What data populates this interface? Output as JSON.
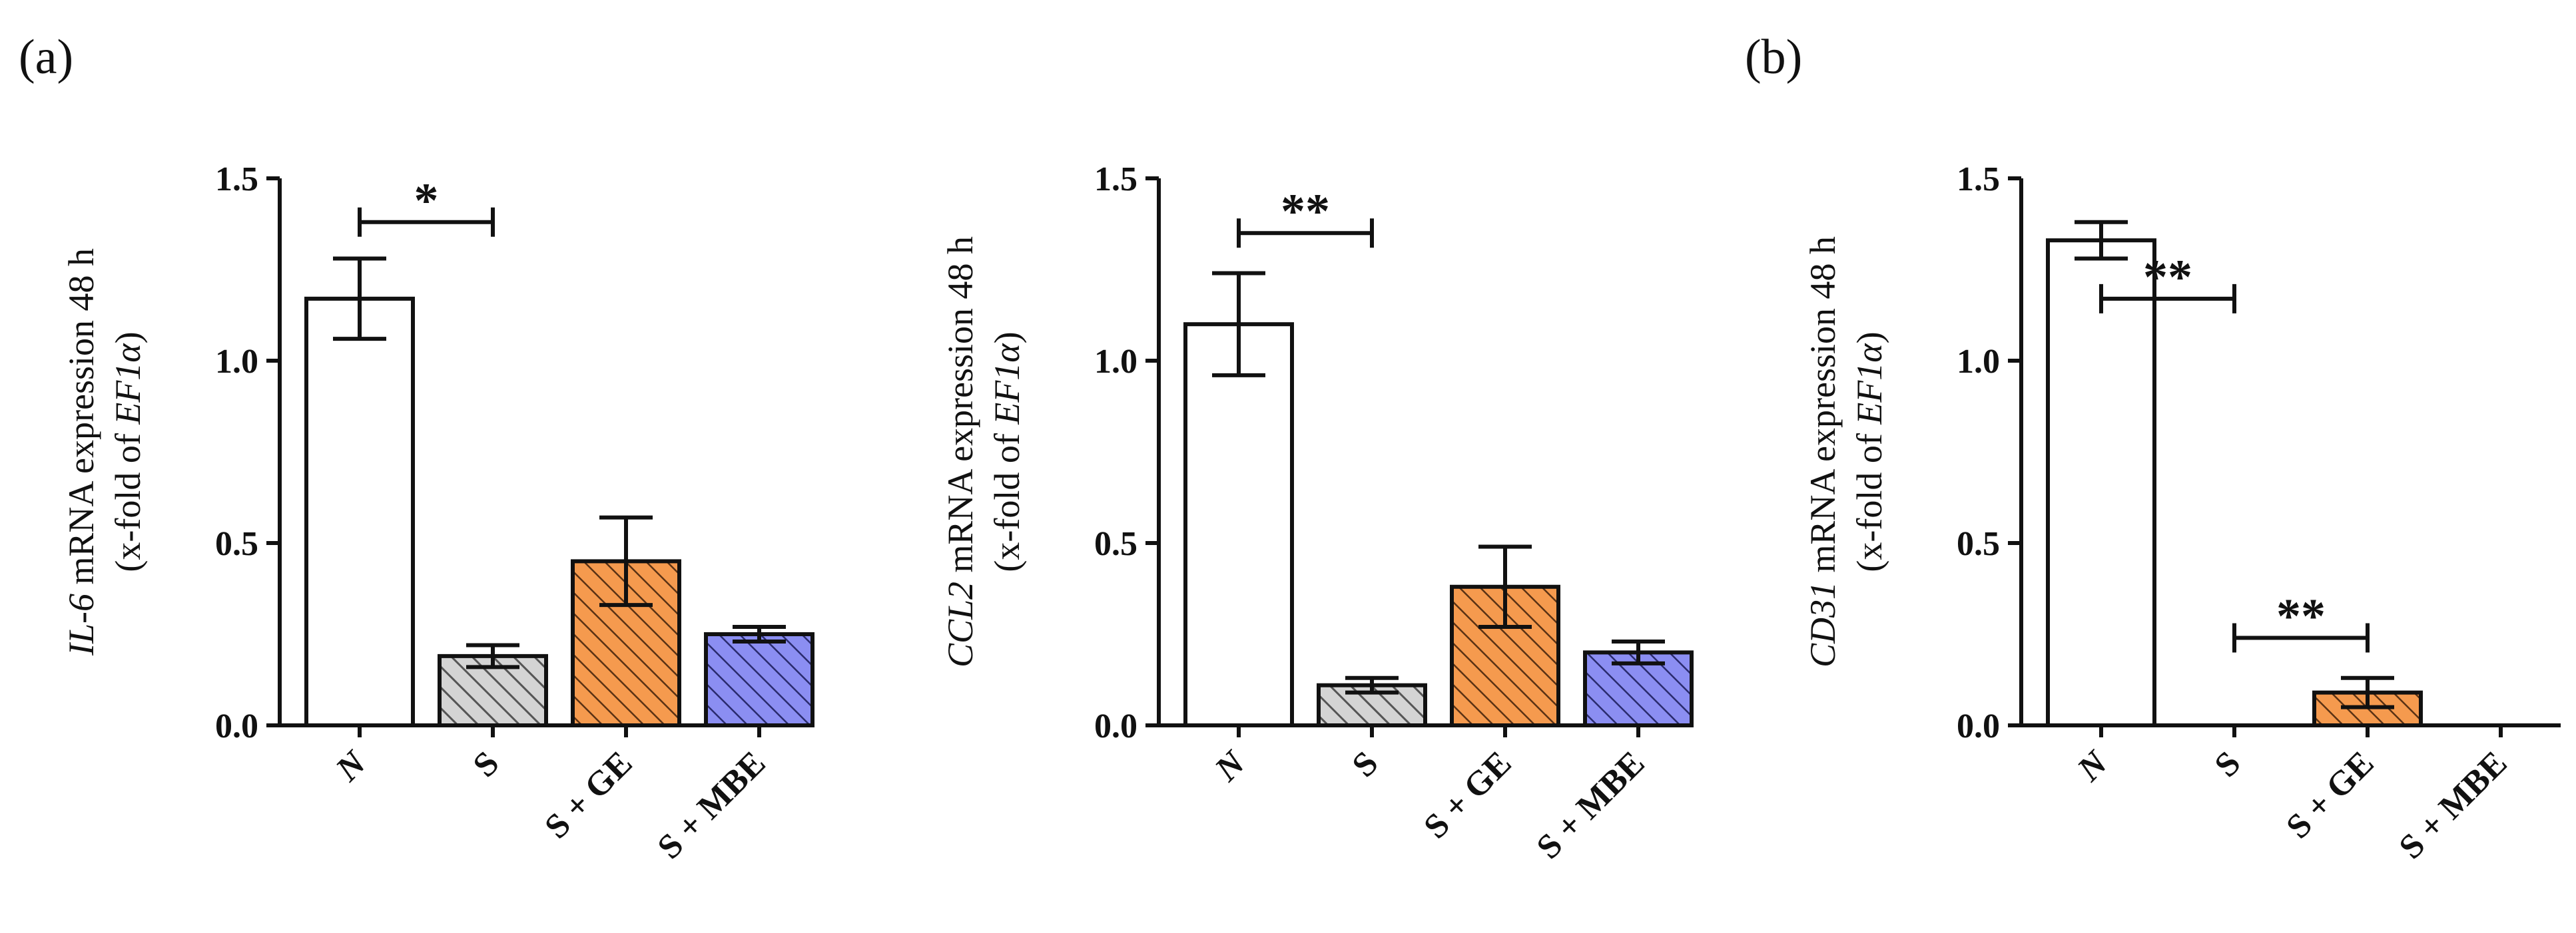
{
  "panel_labels": [
    "(a)",
    "(b)"
  ],
  "colors": {
    "N": "#ffffff",
    "S": "#d4d4d4",
    "S + GE": "#f59a4e",
    "S + MBE": "#8b8ef2",
    "hatch": "#444444",
    "axis": "#111111"
  },
  "chart_data": [
    {
      "type": "bar",
      "panel": "(a)",
      "ylabel_italic": "IL-6",
      "ylabel_rest": " mRNA expression 48 h",
      "ylabel2_prefix": "(x-fold of ",
      "ylabel2_italic": "EF1α",
      "ylabel2_suffix": ")",
      "categories": [
        "N",
        "S",
        "S + GE",
        "S + MBE"
      ],
      "values": [
        1.17,
        0.19,
        0.45,
        0.25
      ],
      "errors": [
        0.11,
        0.03,
        0.12,
        0.02
      ],
      "ylim": [
        0,
        1.5
      ],
      "yticks": [
        "0.0",
        "0.5",
        "1.0",
        "1.5"
      ],
      "significance": [
        {
          "from": 0,
          "to": 1,
          "y": 1.38,
          "label": "*"
        }
      ]
    },
    {
      "type": "bar",
      "panel": "(a)",
      "ylabel_italic": "CCL2",
      "ylabel_rest": " mRNA expression 48 h",
      "ylabel2_prefix": "(x-fold of ",
      "ylabel2_italic": "EF1α",
      "ylabel2_suffix": ")",
      "categories": [
        "N",
        "S",
        "S + GE",
        "S + MBE"
      ],
      "values": [
        1.1,
        0.11,
        0.38,
        0.2
      ],
      "errors": [
        0.14,
        0.02,
        0.11,
        0.03
      ],
      "ylim": [
        0,
        1.5
      ],
      "yticks": [
        "0.0",
        "0.5",
        "1.0",
        "1.5"
      ],
      "significance": [
        {
          "from": 0,
          "to": 1,
          "y": 1.35,
          "label": "**"
        }
      ]
    },
    {
      "type": "bar",
      "panel": "(b)",
      "ylabel_italic": "CD31",
      "ylabel_rest": " mRNA expression 48 h",
      "ylabel2_prefix": "(x-fold of ",
      "ylabel2_italic": "EF1α",
      "ylabel2_suffix": ")",
      "categories": [
        "N",
        "S",
        "S + GE",
        "S + MBE"
      ],
      "values": [
        1.33,
        0,
        0.09,
        0
      ],
      "errors": [
        0.05,
        0,
        0.04,
        0
      ],
      "ylim": [
        0,
        1.5
      ],
      "yticks": [
        "0.0",
        "0.5",
        "1.0",
        "1.5"
      ],
      "significance": [
        {
          "from": 0,
          "to": 1,
          "y": 1.17,
          "label": "**"
        },
        {
          "from": 1,
          "to": 2,
          "y": 0.24,
          "label": "**"
        }
      ]
    }
  ]
}
